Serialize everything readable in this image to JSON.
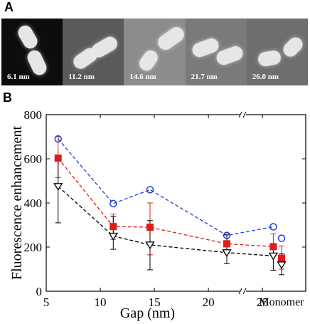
{
  "panel_a": {
    "label": "A",
    "images": [
      {
        "caption": "6.1 nm",
        "background": "#0d0d0d"
      },
      {
        "caption": "11.2 nm",
        "background": "#5a5a5a"
      },
      {
        "caption": "14.6 nm",
        "background": "#8c8c8c"
      },
      {
        "caption": "21.7 nm",
        "background": "#7a7a7a"
      },
      {
        "caption": "26.0 nm",
        "background": "#6e6e6e"
      }
    ]
  },
  "panel_b": {
    "label": "B"
  },
  "chart_data": {
    "type": "line",
    "xlabel": "Gap (nm)",
    "ylabel": "Fluorescence enhancement",
    "xlim": [
      5,
      29
    ],
    "ylim": [
      0,
      800
    ],
    "x_ticks": [
      5,
      10,
      15,
      20,
      25
    ],
    "y_ticks": [
      0,
      200,
      400,
      600,
      800
    ],
    "extra_category": "Monomer",
    "axis_break_symbol": "//",
    "grid": false,
    "x": [
      6.1,
      11.2,
      14.6,
      21.7,
      26.0
    ],
    "series": [
      {
        "marker": "circle",
        "color": "#1f3fd6",
        "values": [
          690,
          397,
          460,
          253,
          292
        ],
        "monomer": 240
      },
      {
        "marker": "square",
        "color": "#e01b1b",
        "values": [
          603,
          293,
          290,
          215,
          202
        ],
        "monomer": 150,
        "errors": [
          [
            515,
            700
          ],
          [
            235,
            350
          ],
          [
            165,
            400
          ],
          [
            170,
            260
          ],
          [
            160,
            260
          ]
        ],
        "monomer_error": [
          100,
          205
        ]
      },
      {
        "marker": "triangle-down",
        "color": "#000000",
        "values": [
          475,
          250,
          210,
          175,
          160
        ],
        "monomer": 120,
        "errors": [
          [
            310,
            610
          ],
          [
            190,
            340
          ],
          [
            97,
            320
          ],
          [
            125,
            255
          ],
          [
            95,
            215
          ]
        ],
        "monomer_error": [
          75,
          170
        ]
      }
    ]
  }
}
